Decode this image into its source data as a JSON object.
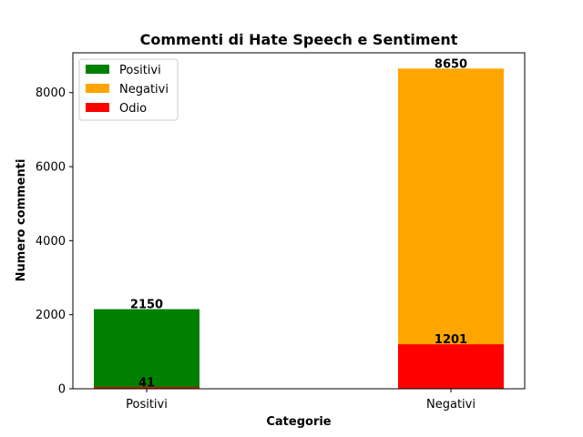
{
  "chart_data": {
    "type": "bar",
    "title": "Commenti di Hate Speech e Sentiment",
    "xlabel": "Categorie",
    "ylabel": "Numero commenti",
    "categories": [
      "Positivi",
      "Negativi"
    ],
    "ylim": [
      0,
      9075
    ],
    "yticks": [
      0,
      2000,
      4000,
      6000,
      8000
    ],
    "grid": false,
    "legend_position": "top-left",
    "series": [
      {
        "name": "Positivi",
        "color": "#008000",
        "values": [
          2150,
          null
        ]
      },
      {
        "name": "Negativi",
        "color": "#FFA500",
        "values": [
          null,
          8650
        ]
      },
      {
        "name": "Odio",
        "color": "#FF0000",
        "values": [
          41,
          1201
        ]
      }
    ],
    "data_labels": [
      {
        "category": "Positivi",
        "series": "Positivi",
        "value": 2150,
        "text": "2150"
      },
      {
        "category": "Positivi",
        "series": "Odio",
        "value": 41,
        "text": "41"
      },
      {
        "category": "Negativi",
        "series": "Negativi",
        "value": 8650,
        "text": "8650"
      },
      {
        "category": "Negativi",
        "series": "Odio",
        "value": 1201,
        "text": "1201"
      }
    ]
  }
}
